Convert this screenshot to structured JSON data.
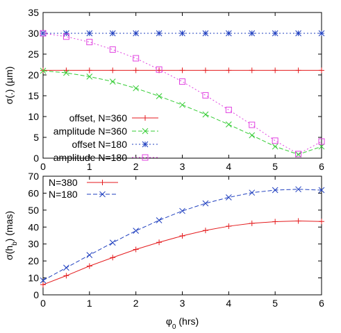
{
  "chart_data": [
    {
      "type": "line",
      "ylabel": "σ(.) (µm)",
      "xlim": [
        0,
        6
      ],
      "ylim": [
        0,
        35
      ],
      "xticks": [
        0,
        1,
        2,
        3,
        4,
        5,
        6
      ],
      "yticks": [
        0,
        5,
        10,
        15,
        20,
        25,
        30,
        35
      ],
      "grid": false,
      "legend_placement": "bottom-left",
      "series": [
        {
          "name": "offset, N=360",
          "color": "#e41a1c",
          "marker": "plus",
          "dash": "solid",
          "x": [
            0,
            0.5,
            1,
            1.5,
            2,
            2.5,
            3,
            3.5,
            4,
            4.5,
            5,
            5.5,
            6
          ],
          "y": [
            21.1,
            21.1,
            21.1,
            21.1,
            21.1,
            21.1,
            21.1,
            21.1,
            21.1,
            21.1,
            21.1,
            21.1,
            21.1
          ]
        },
        {
          "name": "amplitude N=360",
          "color": "#33cc33",
          "marker": "x",
          "dash": "dashed",
          "x": [
            0,
            0.5,
            1,
            1.5,
            2,
            2.5,
            3,
            3.5,
            4,
            4.5,
            5,
            5.5,
            6
          ],
          "y": [
            21.0,
            20.5,
            19.6,
            18.4,
            16.8,
            14.9,
            12.8,
            10.5,
            8.1,
            5.5,
            2.8,
            0.9,
            2.8
          ]
        },
        {
          "name": "offset N=180",
          "color": "#1f3fbf",
          "marker": "star",
          "dash": "dotted",
          "x": [
            0,
            0.5,
            1,
            1.5,
            2,
            2.5,
            3,
            3.5,
            4,
            4.5,
            5,
            5.5,
            6
          ],
          "y": [
            30,
            30,
            30,
            30,
            30,
            30,
            30,
            30,
            30,
            30,
            30,
            30,
            30
          ]
        },
        {
          "name": "amplitude N=180",
          "color": "#e040e0",
          "marker": "square",
          "dash": "dotted",
          "x": [
            0,
            0.5,
            1,
            1.5,
            2,
            2.5,
            3,
            3.5,
            4,
            4.5,
            5,
            5.5,
            6
          ],
          "y": [
            30,
            29.2,
            27.9,
            26.1,
            24.0,
            21.3,
            18.4,
            15.1,
            11.6,
            8.0,
            4.2,
            1.0,
            4.0
          ]
        }
      ]
    },
    {
      "type": "line",
      "xlabel": "φ0 (hrs)",
      "ylabel": "σ(hb) (mas)",
      "xlim": [
        0,
        6
      ],
      "ylim": [
        0,
        70
      ],
      "xticks": [
        0,
        1,
        2,
        3,
        4,
        5,
        6
      ],
      "yticks": [
        0,
        10,
        20,
        30,
        40,
        50,
        60,
        70
      ],
      "grid": false,
      "legend_placement": "top-left",
      "series": [
        {
          "name": "N=380",
          "color": "#e41a1c",
          "marker": "plus",
          "dash": "solid",
          "x": [
            0,
            0.5,
            1,
            1.5,
            2,
            2.5,
            3,
            3.5,
            4,
            4.5,
            5,
            5.5,
            6
          ],
          "y": [
            6.0,
            11.3,
            17.0,
            22.0,
            26.8,
            31.0,
            34.8,
            38.0,
            40.5,
            42.2,
            43.2,
            43.6,
            43.3
          ]
        },
        {
          "name": "N=180",
          "color": "#1f3fbf",
          "marker": "x",
          "dash": "dashed",
          "x": [
            0,
            0.5,
            1,
            1.5,
            2,
            2.5,
            3,
            3.5,
            4,
            4.5,
            5,
            5.5,
            6
          ],
          "y": [
            8.5,
            16.0,
            23.5,
            30.8,
            37.8,
            44.0,
            49.5,
            54.0,
            57.5,
            60.3,
            61.8,
            62.3,
            61.8
          ]
        }
      ]
    }
  ]
}
